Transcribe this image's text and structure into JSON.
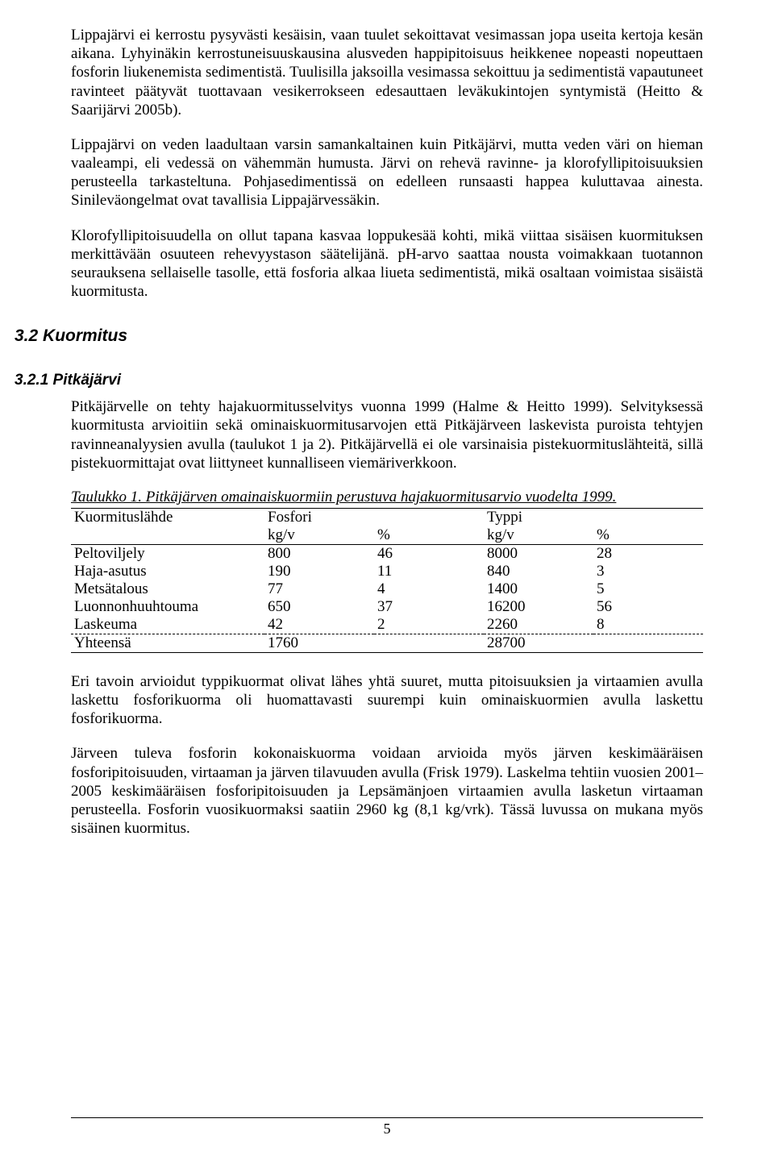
{
  "paragraphs": {
    "p1": "Lippajärvi ei kerrostu pysyvästi kesäisin, vaan tuulet sekoittavat vesimassan jopa useita kertoja kesän aikana. Lyhyinäkin kerrostuneisuuskausina alusveden happipitoisuus heikkenee nopeasti nopeuttaen fosforin liukenemista sedimentistä. Tuulisilla jaksoilla vesimassa sekoittuu ja sedimentistä vapautuneet ravinteet päätyvät tuottavaan vesikerrokseen edesauttaen leväkukintojen syntymistä (Heitto & Saarijärvi 2005b).",
    "p2": "Lippajärvi on veden laadultaan varsin samankaltainen kuin Pitkäjärvi, mutta veden väri on hieman vaaleampi, eli vedessä on vähemmän humusta. Järvi on rehevä ravinne- ja klorofyllipitoisuuksien perusteella tarkasteltuna. Pohjasedimentissä on edelleen runsaasti happea kuluttavaa ainesta. Sinileväongelmat ovat tavallisia Lippajärvessäkin.",
    "p3": "Klorofyllipitoisuudella on ollut tapana kasvaa loppukesää kohti, mikä viittaa sisäisen kuormituksen merkittävään osuuteen rehevyystason säätelijänä. pH-arvo saattaa nousta voimakkaan tuotannon seurauksena sellaiselle tasolle, että fosforia alkaa liueta sedimentistä, mikä osaltaan voimistaa sisäistä kuormitusta.",
    "p4": "Pitkäjärvelle on tehty hajakuormitusselvitys vuonna 1999 (Halme & Heitto 1999). Selvityksessä kuormitusta arvioitiin sekä ominaiskuormitusarvojen että Pitkäjärveen laskevista puroista tehtyjen ravinneanalyysien avulla (taulukot 1 ja 2). Pitkäjärvellä ei ole varsinaisia pistekuormituslähteitä, sillä pistekuormittajat ovat liittyneet kunnalliseen viemäriverkkoon.",
    "p5": "Eri tavoin arvioidut typpikuormat olivat lähes yhtä suuret, mutta pitoisuuksien ja virtaamien avulla laskettu fosforikuorma oli huomattavasti suurempi kuin ominaiskuormien avulla laskettu fosforikuorma.",
    "p6": "Järveen tuleva fosforin kokonaiskuorma voidaan arvioida myös järven keskimääräisen fosforipitoisuuden, virtaaman ja järven tilavuuden avulla (Frisk 1979). Laskelma tehtiin vuosien 2001–2005 keskimääräisen fosforipitoisuuden ja Lepsämänjoen virtaamien avulla lasketun virtaaman perusteella. Fosforin vuosikuormaksi saatiin 2960 kg (8,1 kg/vrk). Tässä luvussa on mukana myös sisäinen kuormitus."
  },
  "headings": {
    "h32": "3.2 Kuormitus",
    "h321": "3.2.1 Pitkäjärvi"
  },
  "table1": {
    "caption": "Taulukko 1. Pitkäjärven omainaiskuormiin perustuva hajakuormitusarvio vuodelta 1999.",
    "header": {
      "source": "Kuormituslähde",
      "fosfori": "Fosfori",
      "typpi": "Typpi"
    },
    "units": {
      "kgv": "kg/v",
      "pct": "%"
    },
    "rows": [
      {
        "source": "Peltoviljely",
        "f_kgv": "800",
        "f_pct": "46",
        "t_kgv": "8000",
        "t_pct": "28"
      },
      {
        "source": "Haja-asutus",
        "f_kgv": "190",
        "f_pct": "11",
        "t_kgv": "840",
        "t_pct": "3"
      },
      {
        "source": "Metsätalous",
        "f_kgv": "77",
        "f_pct": "4",
        "t_kgv": "1400",
        "t_pct": "5"
      },
      {
        "source": "Luonnonhuuhtouma",
        "f_kgv": "650",
        "f_pct": "37",
        "t_kgv": "16200",
        "t_pct": "56"
      },
      {
        "source": "Laskeuma",
        "f_kgv": "42",
        "f_pct": "2",
        "t_kgv": "2260",
        "t_pct": "8"
      }
    ],
    "total": {
      "source": "Yhteensä",
      "f_kgv": "1760",
      "f_pct": "",
      "t_kgv": "28700",
      "t_pct": ""
    }
  },
  "pageNumber": "5"
}
